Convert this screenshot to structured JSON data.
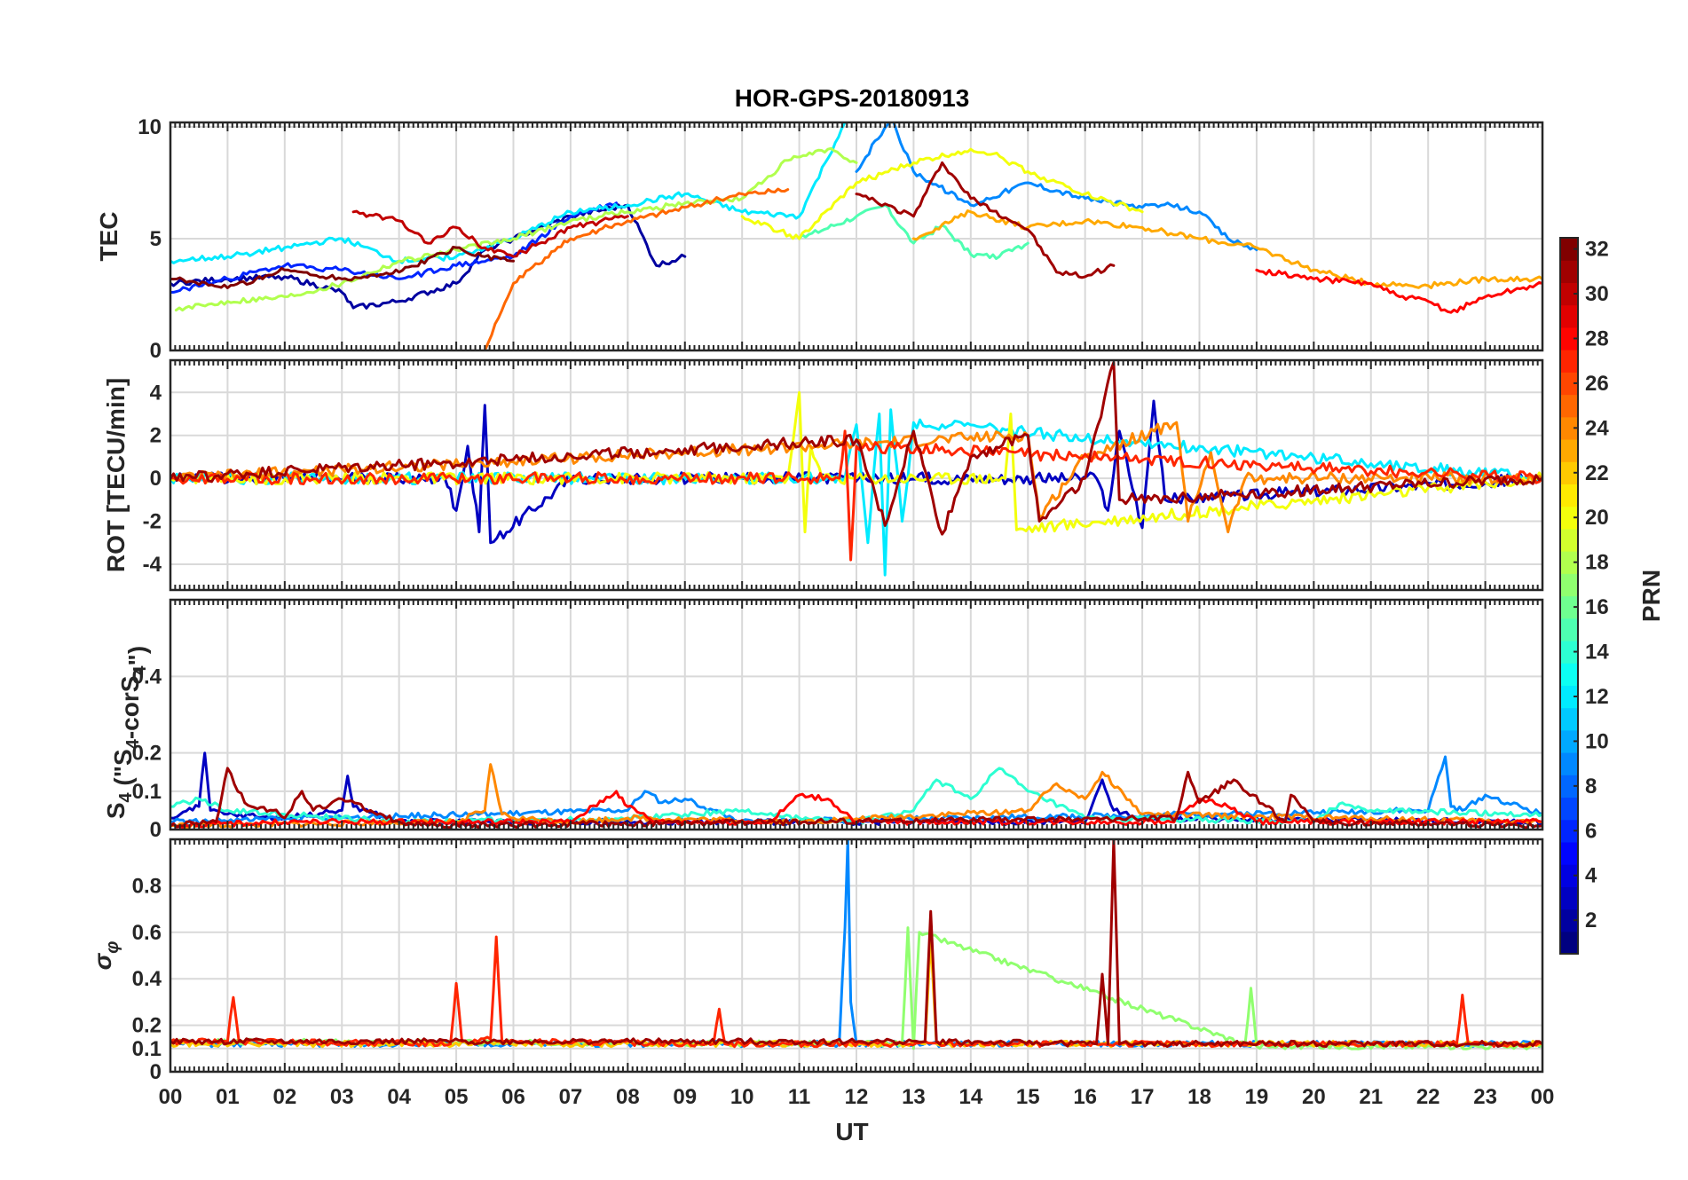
{
  "chart_data": {
    "type": "line",
    "title": "HOR-GPS-20180913",
    "xlabel": "UT",
    "x_tick_labels": [
      "00",
      "01",
      "02",
      "03",
      "04",
      "05",
      "06",
      "07",
      "08",
      "09",
      "10",
      "11",
      "12",
      "13",
      "14",
      "15",
      "16",
      "17",
      "18",
      "19",
      "20",
      "21",
      "22",
      "23",
      "00"
    ],
    "xlim": [
      0,
      24
    ],
    "colorbar": {
      "label": "PRN",
      "range": [
        1,
        32
      ],
      "tick_labels": [
        "2",
        "4",
        "6",
        "8",
        "10",
        "12",
        "14",
        "16",
        "18",
        "20",
        "22",
        "24",
        "26",
        "28",
        "30",
        "32"
      ],
      "colormap": "jet"
    },
    "panels": [
      {
        "ylabel": "TEC",
        "ylim": [
          0,
          10.2
        ],
        "y_ticks": [
          0,
          5,
          10
        ],
        "y_tick_labels": [
          "0",
          "5",
          "10"
        ],
        "series": [
          {
            "prn": 2,
            "x": [
              0,
              1,
              2,
              3,
              3.2,
              4,
              5,
              5.5,
              6,
              7,
              8,
              8.5,
              9
            ],
            "y": [
              3,
              3.2,
              3.3,
              2.6,
              1.9,
              2.2,
              3,
              4.5,
              5,
              6,
              6.5,
              3.8,
              4.2
            ]
          },
          {
            "prn": 6,
            "x": [
              0,
              1,
              2,
              3,
              4,
              5,
              6,
              7,
              7.8
            ],
            "y": [
              2.6,
              3.2,
              3.8,
              3.6,
              3.2,
              3.8,
              4.2,
              6,
              6.6
            ]
          },
          {
            "prn": 9,
            "x": [
              12,
              12.6,
              13,
              14,
              15,
              16,
              17,
              17.5,
              18,
              18.5,
              19
            ],
            "y": [
              8,
              10.4,
              8,
              6.5,
              7.5,
              6.8,
              6.4,
              6.5,
              6.2,
              5,
              4.5
            ]
          },
          {
            "prn": 12,
            "x": [
              0,
              1,
              2,
              3,
              4,
              5,
              6,
              7,
              8,
              9,
              10,
              11,
              11.8
            ],
            "y": [
              4,
              4.2,
              4.6,
              5,
              4,
              4.2,
              5,
              6.2,
              6.5,
              7,
              6.2,
              6,
              10.2
            ]
          },
          {
            "prn": 15,
            "x": [
              11,
              12,
              12.5,
              13,
              13.5,
              14,
              14.5,
              15
            ],
            "y": [
              5,
              6,
              6.5,
              4.8,
              5.6,
              4.3,
              4.2,
              4.8
            ]
          },
          {
            "prn": 18,
            "x": [
              0.1,
              1,
              2,
              3,
              4,
              5,
              6,
              7,
              8,
              9,
              10,
              10.8,
              11.5,
              12
            ],
            "y": [
              1.8,
              2.2,
              2.4,
              3,
              4,
              4.5,
              5,
              5.8,
              6.2,
              6.6,
              6.8,
              8.5,
              9,
              8.4
            ]
          },
          {
            "prn": 20,
            "x": [
              10,
              11,
              12,
              13,
              14,
              14.4,
              15,
              16,
              17
            ],
            "y": [
              6,
              5,
              7.5,
              8.4,
              9,
              8.8,
              8,
              7,
              6.2
            ]
          },
          {
            "prn": 23,
            "x": [
              13,
              14,
              15,
              16,
              17,
              18,
              19,
              20,
              21,
              22,
              23,
              24
            ],
            "y": [
              5,
              6.2,
              5.5,
              5.8,
              5.5,
              5,
              4.6,
              3.6,
              3,
              2.9,
              3.2,
              3.2
            ]
          },
          {
            "prn": 25,
            "x": [
              5.5,
              5.8,
              6,
              7,
              8,
              9,
              10,
              10.8
            ],
            "y": [
              0,
              1.8,
              3,
              5,
              5.8,
              6.4,
              7,
              7.2
            ]
          },
          {
            "prn": 28,
            "x": [
              19,
              20,
              21,
              21.5,
              22,
              22.4,
              23,
              24
            ],
            "y": [
              3.6,
              3.2,
              3,
              2.4,
              2.2,
              1.7,
              2.4,
              3
            ]
          },
          {
            "prn": 30,
            "x": [
              3.2,
              4,
              4.5,
              5,
              5.5,
              6,
              7,
              8
            ],
            "y": [
              6.2,
              5.8,
              4.8,
              5.5,
              4.6,
              4.2,
              5.5,
              6
            ]
          },
          {
            "prn": 31,
            "x": [
              12,
              13,
              13.5,
              14,
              15,
              15.5,
              16,
              16.5
            ],
            "y": [
              7,
              6,
              8.4,
              6.8,
              5.4,
              3.5,
              3.3,
              3.8
            ]
          },
          {
            "prn": 32,
            "x": [
              0,
              1,
              2,
              3,
              4,
              5,
              5.5,
              6
            ],
            "y": [
              3.2,
              2.8,
              3.6,
              3.2,
              3.5,
              4.6,
              4.2,
              4
            ]
          }
        ]
      },
      {
        "ylabel": "ROT [TECU/min]",
        "ylim": [
          -5.2,
          5.5
        ],
        "y_ticks": [
          -4,
          -2,
          0,
          2,
          4
        ],
        "y_tick_labels": [
          "-4",
          "-2",
          "0",
          "2",
          "4"
        ],
        "series": [
          {
            "prn": 3,
            "x": [
              0,
              4.8,
              5,
              5.2,
              5.4,
              5.5,
              5.6,
              7,
              16.2,
              16.4,
              16.6,
              17,
              17.2,
              17.4,
              24
            ],
            "y": [
              0,
              0,
              -1.5,
              1.5,
              -2.5,
              3.4,
              -3,
              0,
              0,
              -1.5,
              2.2,
              -2.3,
              3.6,
              -1,
              0
            ]
          },
          {
            "prn": 12,
            "x": [
              0,
              11.8,
              12,
              12.2,
              12.4,
              12.5,
              12.6,
              12.8,
              13,
              24
            ],
            "y": [
              0,
              0,
              2.5,
              -3,
              3,
              -4.5,
              3.2,
              -2,
              2.6,
              0
            ]
          },
          {
            "prn": 20,
            "x": [
              0,
              10.8,
              11,
              11.1,
              11.2,
              11.4,
              14.6,
              14.7,
              14.8,
              24
            ],
            "y": [
              0,
              0,
              4,
              -2.5,
              1.5,
              0,
              0,
              3,
              -2.4,
              0
            ]
          },
          {
            "prn": 24,
            "x": [
              0,
              15,
              15.2,
              16,
              17.6,
              17.8,
              18.2,
              18.5,
              18.8,
              24
            ],
            "y": [
              0,
              2,
              -1.8,
              1,
              2.6,
              -2,
              1.2,
              -2.5,
              0,
              0
            ]
          },
          {
            "prn": 27,
            "x": [
              0,
              11.7,
              11.8,
              11.9,
              12,
              24
            ],
            "y": [
              0,
              0,
              2.2,
              -3.8,
              1.5,
              0
            ]
          },
          {
            "prn": 31,
            "x": [
              0,
              12,
              12.5,
              13,
              13.5,
              14,
              15,
              15.2,
              16,
              16.5,
              16.6,
              24
            ],
            "y": [
              0,
              1.8,
              -2.2,
              2.2,
              -2.6,
              1,
              2,
              -2,
              0,
              5.4,
              -1,
              0
            ]
          }
        ]
      },
      {
        "ylabel": "S",
        "ylim": [
          0,
          0.6
        ],
        "y_ticks": [
          0,
          0.1,
          0.2,
          0.4
        ],
        "y_tick_labels": [
          "0",
          "0.1",
          "0.2",
          "0.4"
        ],
        "series": [
          {
            "prn": 3,
            "x": [
              0,
              0.5,
              0.6,
              0.7,
              1,
              2,
              3,
              3.1,
              3.2,
              4,
              5,
              16,
              16.3,
              16.5,
              17,
              24
            ],
            "y": [
              0.03,
              0.06,
              0.2,
              0.05,
              0.04,
              0.03,
              0.05,
              0.14,
              0.06,
              0.02,
              0.02,
              0.02,
              0.13,
              0.05,
              0.03,
              0.02
            ]
          },
          {
            "prn": 9,
            "x": [
              0,
              8,
              8.3,
              8.6,
              9,
              9.5,
              10,
              22,
              22.3,
              22.4,
              22.6,
              23,
              24
            ],
            "y": [
              0.02,
              0.05,
              0.1,
              0.07,
              0.08,
              0.05,
              0.02,
              0.05,
              0.19,
              0.06,
              0.05,
              0.09,
              0.04
            ]
          },
          {
            "prn": 14,
            "x": [
              0,
              0.5,
              1,
              2,
              3,
              4,
              8,
              9,
              10,
              11,
              12,
              13,
              13.4,
              14,
              14.5,
              15,
              16,
              20,
              20.5,
              21,
              24
            ],
            "y": [
              0.06,
              0.08,
              0.05,
              0.04,
              0.03,
              0.02,
              0.03,
              0.04,
              0.05,
              0.03,
              0.02,
              0.05,
              0.13,
              0.08,
              0.16,
              0.1,
              0.03,
              0.02,
              0.07,
              0.05,
              0.04
            ]
          },
          {
            "prn": 24,
            "x": [
              0,
              5,
              5.5,
              5.6,
              5.8,
              6,
              7,
              8,
              11,
              15,
              15.5,
              16,
              16.3,
              17,
              24
            ],
            "y": [
              0.01,
              0.02,
              0.05,
              0.17,
              0.04,
              0.03,
              0.02,
              0.03,
              0.02,
              0.05,
              0.12,
              0.08,
              0.15,
              0.04,
              0.02
            ]
          },
          {
            "prn": 28,
            "x": [
              0,
              2,
              7,
              7.8,
              8,
              8.5,
              10.5,
              11,
              11.5,
              12,
              17.5,
              18,
              18.5,
              19,
              24
            ],
            "y": [
              0.01,
              0.02,
              0.02,
              0.1,
              0.06,
              0.02,
              0.02,
              0.09,
              0.08,
              0.02,
              0.02,
              0.08,
              0.06,
              0.02,
              0.02
            ]
          },
          {
            "prn": 31,
            "x": [
              0,
              0.8,
              1,
              1.3,
              1.8,
              2,
              2.3,
              2.5,
              3,
              3.5,
              4,
              4.5,
              17.6,
              17.8,
              18,
              18.6,
              19.5,
              19.6,
              19.9,
              20,
              24
            ],
            "y": [
              0.01,
              0.02,
              0.16,
              0.07,
              0.05,
              0.03,
              0.1,
              0.05,
              0.08,
              0.05,
              0.02,
              0.01,
              0.03,
              0.15,
              0.07,
              0.13,
              0.02,
              0.09,
              0.04,
              0.02,
              0.01
            ]
          }
        ]
      },
      {
        "ylabel": "σ_φ",
        "ylim": [
          0,
          1.0
        ],
        "y_ticks": [
          0,
          0.1,
          0.2,
          0.4,
          0.6,
          0.8
        ],
        "y_tick_labels": [
          "0",
          "0.1",
          "0.2",
          "0.4",
          "0.6",
          "0.8"
        ],
        "series": [
          {
            "prn": 9,
            "x": [
              0,
              6,
              11.7,
              11.8,
              11.85,
              11.9,
              12,
              24
            ],
            "y": [
              0.12,
              0.12,
              0.12,
              0.62,
              1.0,
              0.3,
              0.12,
              0.12
            ]
          },
          {
            "prn": 17,
            "x": [
              0,
              12.8,
              12.9,
              13,
              13.1,
              18.8,
              18.9,
              19,
              24
            ],
            "y": [
              0.13,
              0.12,
              0.62,
              0.1,
              0.6,
              0.12,
              0.36,
              0.11,
              0.11
            ]
          },
          {
            "prn": 22,
            "x": [
              0,
              13.2,
              13.3,
              13.4,
              24
            ],
            "y": [
              0.12,
              0.12,
              0.58,
              0.12,
              0.12
            ]
          },
          {
            "prn": 27,
            "x": [
              0,
              1,
              1.1,
              1.2,
              4.9,
              5,
              5.1,
              5.6,
              5.7,
              5.8,
              9.5,
              9.6,
              9.7,
              22.5,
              22.6,
              22.7,
              24
            ],
            "y": [
              0.13,
              0.13,
              0.32,
              0.13,
              0.12,
              0.38,
              0.13,
              0.14,
              0.58,
              0.13,
              0.12,
              0.27,
              0.12,
              0.12,
              0.33,
              0.12,
              0.12
            ]
          },
          {
            "prn": 31,
            "x": [
              0,
              13.2,
              13.3,
              13.4,
              16.2,
              16.3,
              16.4,
              16.5,
              16.6,
              24
            ],
            "y": [
              0.13,
              0.13,
              0.69,
              0.13,
              0.12,
              0.42,
              0.12,
              1.0,
              0.12,
              0.12
            ]
          }
        ]
      }
    ]
  }
}
